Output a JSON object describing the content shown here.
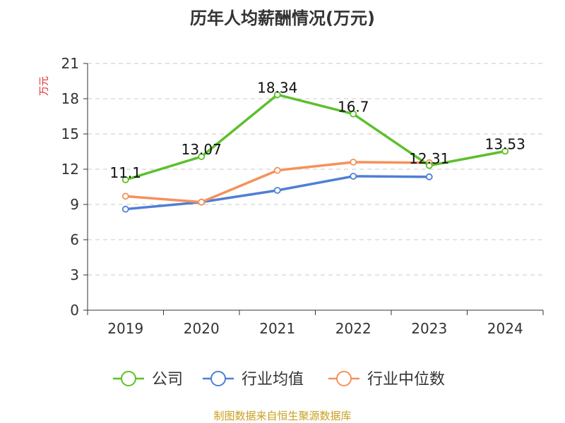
{
  "chart_data": {
    "type": "line",
    "title": "历年人均薪酬情况(万元)",
    "ylabel": "万元",
    "xlabel": "",
    "categories": [
      "2019",
      "2020",
      "2021",
      "2022",
      "2023",
      "2024"
    ],
    "ylim": [
      0,
      21
    ],
    "yticks": [
      "0",
      "3",
      "6",
      "9",
      "12",
      "15",
      "18",
      "21"
    ],
    "grid": true,
    "legend_position": "bottom",
    "series": [
      {
        "name": "公司",
        "color": "#5cc02a",
        "values": [
          11.1,
          13.07,
          18.34,
          16.7,
          12.31,
          13.53
        ],
        "labels": [
          "11.1",
          "13.07",
          "18.34",
          "16.7",
          "12.31",
          "13.53"
        ]
      },
      {
        "name": "行业均值",
        "color": "#4f7fd6",
        "values": [
          8.6,
          9.2,
          10.2,
          11.4,
          11.35,
          null
        ]
      },
      {
        "name": "行业中位数",
        "color": "#f5915a",
        "values": [
          9.7,
          9.2,
          11.9,
          12.6,
          12.55,
          null
        ]
      }
    ]
  },
  "source_text": "制图数据来自恒生聚源数据库"
}
